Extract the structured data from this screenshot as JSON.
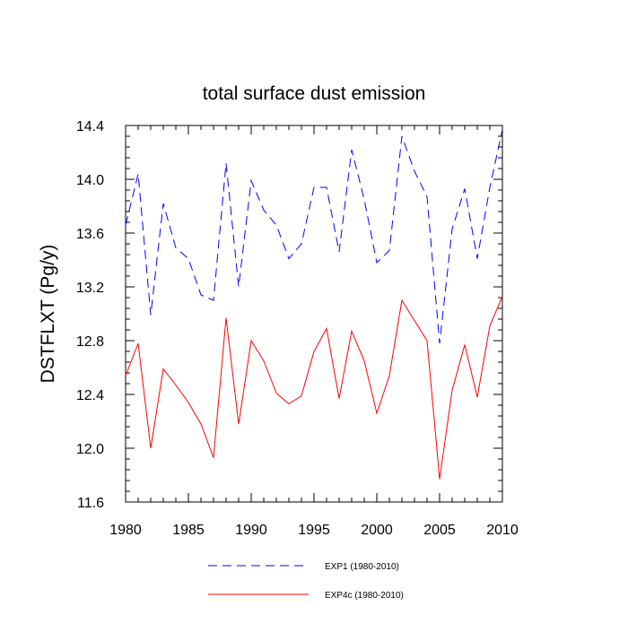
{
  "chart_data": {
    "type": "line",
    "title": "total surface dust emission",
    "xlabel": "",
    "ylabel": "DSTFLXT  (Pg/y)",
    "xlim": [
      1980,
      2010
    ],
    "ylim": [
      11.6,
      14.4
    ],
    "x_ticks": [
      1980,
      1985,
      1990,
      1995,
      2000,
      2005,
      2010
    ],
    "x_tick_labels": [
      "1980",
      "1985",
      "1990",
      "1995",
      "2000",
      "2005",
      "2010"
    ],
    "y_ticks": [
      11.6,
      12.0,
      12.4,
      12.8,
      13.2,
      13.6,
      14.0,
      14.4
    ],
    "y_tick_labels": [
      "11.6",
      "12.0",
      "12.4",
      "12.8",
      "13.2",
      "13.6",
      "14.0",
      "14.4"
    ],
    "grid": false,
    "legend_position": "bottom-center",
    "x": [
      1980,
      1981,
      1982,
      1983,
      1984,
      1985,
      1986,
      1987,
      1988,
      1989,
      1990,
      1991,
      1992,
      1993,
      1994,
      1995,
      1996,
      1997,
      1998,
      1999,
      2000,
      2001,
      2002,
      2003,
      2004,
      2005,
      2006,
      2007,
      2008,
      2009,
      2010
    ],
    "series": [
      {
        "name": "EXP1 (1980-2010)",
        "color": "#0000ff",
        "dash": "dashed",
        "values": [
          13.66,
          14.04,
          12.99,
          13.82,
          13.49,
          13.41,
          13.14,
          13.1,
          14.12,
          13.2,
          13.99,
          13.77,
          13.66,
          13.41,
          13.52,
          13.94,
          13.94,
          13.46,
          14.22,
          13.85,
          13.38,
          13.47,
          14.32,
          14.06,
          13.87,
          12.78,
          13.63,
          13.93,
          13.41,
          13.94,
          14.37
        ]
      },
      {
        "name": "EXP4c (1980-2010)",
        "color": "#ff0000",
        "dash": "solid",
        "values": [
          12.54,
          12.78,
          12.0,
          12.59,
          12.47,
          12.34,
          12.18,
          11.93,
          12.97,
          12.18,
          12.8,
          12.65,
          12.41,
          12.33,
          12.39,
          12.72,
          12.89,
          12.37,
          12.87,
          12.65,
          12.26,
          12.54,
          13.1,
          12.95,
          12.8,
          11.77,
          12.43,
          12.77,
          12.38,
          12.91,
          13.13
        ]
      }
    ]
  }
}
